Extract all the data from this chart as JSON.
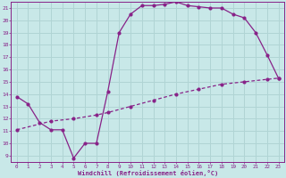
{
  "xlabel": "Windchill (Refroidissement éolien,°C)",
  "xlim": [
    -0.5,
    23.5
  ],
  "ylim": [
    8.5,
    21.5
  ],
  "xticks": [
    0,
    1,
    2,
    3,
    4,
    5,
    6,
    7,
    8,
    9,
    10,
    11,
    12,
    13,
    14,
    15,
    16,
    17,
    18,
    19,
    20,
    21,
    22,
    23
  ],
  "yticks": [
    9,
    10,
    11,
    12,
    13,
    14,
    15,
    16,
    17,
    18,
    19,
    20,
    21
  ],
  "bg_color": "#c8e8e8",
  "grid_color": "#b0d4d4",
  "line_color": "#882288",
  "line1_x": [
    0,
    1,
    2,
    3,
    4,
    5,
    6,
    7,
    8,
    9,
    10,
    11,
    12,
    13,
    14,
    15,
    16,
    17,
    18,
    19,
    20,
    21,
    22,
    23
  ],
  "line1_y": [
    13.8,
    13.2,
    11.7,
    11.1,
    11.1,
    8.8,
    10.0,
    10.0,
    14.2,
    19.0,
    20.5,
    21.2,
    21.2,
    21.3,
    21.5,
    21.2,
    21.1,
    21.0,
    21.0,
    20.5,
    20.2,
    19.0,
    17.2,
    15.3
  ],
  "line2_x": [
    0,
    3,
    5,
    7,
    8,
    10,
    12,
    14,
    16,
    18,
    20,
    22,
    23
  ],
  "line2_y": [
    11.1,
    11.8,
    12.0,
    12.3,
    12.5,
    13.0,
    13.5,
    14.0,
    14.4,
    14.8,
    15.0,
    15.2,
    15.3
  ]
}
